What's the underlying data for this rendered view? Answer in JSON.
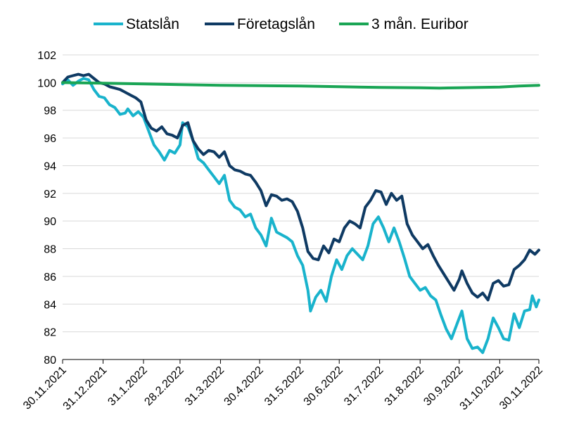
{
  "chart_data": {
    "type": "line",
    "title": "",
    "xlabel": "",
    "ylabel": "",
    "ylim": [
      80,
      102
    ],
    "yticks": [
      80,
      82,
      84,
      86,
      88,
      90,
      92,
      94,
      96,
      98,
      100,
      102
    ],
    "grid": "horizontal",
    "legend": "top",
    "xticks": [
      {
        "label": "30.11.2021",
        "date": "2021-11-30"
      },
      {
        "label": "31.12.2021",
        "date": "2021-12-31"
      },
      {
        "label": "31.1.2022",
        "date": "2022-01-31"
      },
      {
        "label": "28.2.2022",
        "date": "2022-02-28"
      },
      {
        "label": "31.3.2022",
        "date": "2022-03-31"
      },
      {
        "label": "30.4.2022",
        "date": "2022-04-30"
      },
      {
        "label": "31.5.2022",
        "date": "2022-05-31"
      },
      {
        "label": "30.6.2022",
        "date": "2022-06-30"
      },
      {
        "label": "31.7.2022",
        "date": "2022-07-31"
      },
      {
        "label": "31.8.2022",
        "date": "2022-08-31"
      },
      {
        "label": "30.9.2022",
        "date": "2022-09-30"
      },
      {
        "label": "31.10.2022",
        "date": "2022-10-31"
      },
      {
        "label": "30.11.2022",
        "date": "2022-11-30"
      }
    ],
    "series": [
      {
        "name": "Statslån",
        "color": "#19b3cc",
        "points": [
          [
            "2021-11-30",
            99.9
          ],
          [
            "2021-12-04",
            100.2
          ],
          [
            "2021-12-08",
            99.8
          ],
          [
            "2021-12-12",
            100.1
          ],
          [
            "2021-12-16",
            100.3
          ],
          [
            "2021-12-20",
            100.2
          ],
          [
            "2021-12-24",
            99.5
          ],
          [
            "2021-12-28",
            99.0
          ],
          [
            "2022-01-01",
            98.9
          ],
          [
            "2022-01-05",
            98.4
          ],
          [
            "2022-01-09",
            98.2
          ],
          [
            "2022-01-13",
            97.7
          ],
          [
            "2022-01-17",
            97.8
          ],
          [
            "2022-01-19",
            98.1
          ],
          [
            "2022-01-23",
            97.6
          ],
          [
            "2022-01-27",
            97.9
          ],
          [
            "2022-01-31",
            97.5
          ],
          [
            "2022-02-04",
            96.5
          ],
          [
            "2022-02-08",
            95.5
          ],
          [
            "2022-02-12",
            95.0
          ],
          [
            "2022-02-16",
            94.4
          ],
          [
            "2022-02-20",
            95.1
          ],
          [
            "2022-02-24",
            94.9
          ],
          [
            "2022-02-28",
            95.5
          ],
          [
            "2022-03-02",
            97.1
          ],
          [
            "2022-03-06",
            96.8
          ],
          [
            "2022-03-10",
            95.8
          ],
          [
            "2022-03-14",
            94.5
          ],
          [
            "2022-03-18",
            94.2
          ],
          [
            "2022-03-22",
            93.7
          ],
          [
            "2022-03-26",
            93.2
          ],
          [
            "2022-03-30",
            92.7
          ],
          [
            "2022-04-03",
            93.3
          ],
          [
            "2022-04-07",
            91.5
          ],
          [
            "2022-04-11",
            91.0
          ],
          [
            "2022-04-15",
            90.8
          ],
          [
            "2022-04-19",
            90.3
          ],
          [
            "2022-04-23",
            90.5
          ],
          [
            "2022-04-27",
            89.5
          ],
          [
            "2022-05-01",
            89.0
          ],
          [
            "2022-05-05",
            88.2
          ],
          [
            "2022-05-09",
            90.2
          ],
          [
            "2022-05-13",
            89.2
          ],
          [
            "2022-05-17",
            89.0
          ],
          [
            "2022-05-21",
            88.8
          ],
          [
            "2022-05-25",
            88.5
          ],
          [
            "2022-05-29",
            87.5
          ],
          [
            "2022-06-02",
            86.8
          ],
          [
            "2022-06-06",
            85.0
          ],
          [
            "2022-06-08",
            83.5
          ],
          [
            "2022-06-12",
            84.5
          ],
          [
            "2022-06-16",
            85.0
          ],
          [
            "2022-06-20",
            84.2
          ],
          [
            "2022-06-24",
            86.0
          ],
          [
            "2022-06-28",
            87.2
          ],
          [
            "2022-07-02",
            86.5
          ],
          [
            "2022-07-06",
            87.5
          ],
          [
            "2022-07-10",
            88.0
          ],
          [
            "2022-07-14",
            87.6
          ],
          [
            "2022-07-18",
            87.2
          ],
          [
            "2022-07-22",
            88.2
          ],
          [
            "2022-07-26",
            89.8
          ],
          [
            "2022-07-30",
            90.3
          ],
          [
            "2022-08-03",
            89.5
          ],
          [
            "2022-08-07",
            88.5
          ],
          [
            "2022-08-11",
            89.5
          ],
          [
            "2022-08-15",
            88.5
          ],
          [
            "2022-08-19",
            87.3
          ],
          [
            "2022-08-23",
            86.0
          ],
          [
            "2022-08-27",
            85.5
          ],
          [
            "2022-08-31",
            85.0
          ],
          [
            "2022-09-04",
            85.2
          ],
          [
            "2022-09-08",
            84.6
          ],
          [
            "2022-09-12",
            84.3
          ],
          [
            "2022-09-16",
            83.2
          ],
          [
            "2022-09-20",
            82.2
          ],
          [
            "2022-09-24",
            81.5
          ],
          [
            "2022-09-28",
            82.5
          ],
          [
            "2022-10-02",
            83.5
          ],
          [
            "2022-10-06",
            81.5
          ],
          [
            "2022-10-10",
            80.8
          ],
          [
            "2022-10-14",
            80.9
          ],
          [
            "2022-10-18",
            80.5
          ],
          [
            "2022-10-22",
            81.5
          ],
          [
            "2022-10-26",
            83.0
          ],
          [
            "2022-10-30",
            82.3
          ],
          [
            "2022-11-03",
            81.5
          ],
          [
            "2022-11-07",
            81.4
          ],
          [
            "2022-11-11",
            83.3
          ],
          [
            "2022-11-15",
            82.3
          ],
          [
            "2022-11-19",
            83.5
          ],
          [
            "2022-11-23",
            83.6
          ],
          [
            "2022-11-25",
            84.6
          ],
          [
            "2022-11-28",
            83.8
          ],
          [
            "2022-11-30",
            84.3
          ]
        ]
      },
      {
        "name": "Företagslån",
        "color": "#0f3a63",
        "points": [
          [
            "2021-11-30",
            100.0
          ],
          [
            "2021-12-04",
            100.4
          ],
          [
            "2021-12-08",
            100.5
          ],
          [
            "2021-12-12",
            100.6
          ],
          [
            "2021-12-16",
            100.5
          ],
          [
            "2021-12-20",
            100.6
          ],
          [
            "2021-12-24",
            100.3
          ],
          [
            "2021-12-28",
            100.0
          ],
          [
            "2022-01-01",
            99.9
          ],
          [
            "2022-01-05",
            99.7
          ],
          [
            "2022-01-09",
            99.6
          ],
          [
            "2022-01-13",
            99.5
          ],
          [
            "2022-01-17",
            99.3
          ],
          [
            "2022-01-21",
            99.1
          ],
          [
            "2022-01-25",
            98.9
          ],
          [
            "2022-01-29",
            98.6
          ],
          [
            "2022-02-02",
            97.3
          ],
          [
            "2022-02-06",
            96.7
          ],
          [
            "2022-02-10",
            96.5
          ],
          [
            "2022-02-14",
            96.8
          ],
          [
            "2022-02-18",
            96.3
          ],
          [
            "2022-02-22",
            96.2
          ],
          [
            "2022-02-26",
            96.0
          ],
          [
            "2022-03-02",
            96.9
          ],
          [
            "2022-03-06",
            97.1
          ],
          [
            "2022-03-10",
            95.8
          ],
          [
            "2022-03-14",
            95.2
          ],
          [
            "2022-03-18",
            94.8
          ],
          [
            "2022-03-22",
            95.1
          ],
          [
            "2022-03-26",
            95.0
          ],
          [
            "2022-03-30",
            94.6
          ],
          [
            "2022-04-03",
            95.0
          ],
          [
            "2022-04-07",
            94.0
          ],
          [
            "2022-04-11",
            93.7
          ],
          [
            "2022-04-15",
            93.6
          ],
          [
            "2022-04-19",
            93.4
          ],
          [
            "2022-04-23",
            93.3
          ],
          [
            "2022-04-27",
            92.8
          ],
          [
            "2022-05-01",
            92.2
          ],
          [
            "2022-05-05",
            91.1
          ],
          [
            "2022-05-09",
            91.9
          ],
          [
            "2022-05-13",
            91.8
          ],
          [
            "2022-05-17",
            91.5
          ],
          [
            "2022-05-21",
            91.6
          ],
          [
            "2022-05-25",
            91.4
          ],
          [
            "2022-05-29",
            90.7
          ],
          [
            "2022-06-02",
            89.5
          ],
          [
            "2022-06-06",
            87.8
          ],
          [
            "2022-06-10",
            87.3
          ],
          [
            "2022-06-14",
            87.2
          ],
          [
            "2022-06-18",
            88.2
          ],
          [
            "2022-06-22",
            87.7
          ],
          [
            "2022-06-26",
            88.7
          ],
          [
            "2022-06-30",
            88.5
          ],
          [
            "2022-07-04",
            89.5
          ],
          [
            "2022-07-08",
            90.0
          ],
          [
            "2022-07-12",
            89.8
          ],
          [
            "2022-07-16",
            89.5
          ],
          [
            "2022-07-20",
            91.0
          ],
          [
            "2022-07-24",
            91.5
          ],
          [
            "2022-07-28",
            92.2
          ],
          [
            "2022-08-01",
            92.1
          ],
          [
            "2022-08-05",
            91.2
          ],
          [
            "2022-08-09",
            92.0
          ],
          [
            "2022-08-13",
            91.5
          ],
          [
            "2022-08-17",
            91.8
          ],
          [
            "2022-08-21",
            89.8
          ],
          [
            "2022-08-25",
            89.0
          ],
          [
            "2022-08-29",
            88.5
          ],
          [
            "2022-09-02",
            88.0
          ],
          [
            "2022-09-06",
            88.3
          ],
          [
            "2022-09-10",
            87.5
          ],
          [
            "2022-09-14",
            86.8
          ],
          [
            "2022-09-18",
            86.2
          ],
          [
            "2022-09-22",
            85.6
          ],
          [
            "2022-09-26",
            85.0
          ],
          [
            "2022-09-30",
            85.8
          ],
          [
            "2022-10-02",
            86.4
          ],
          [
            "2022-10-06",
            85.5
          ],
          [
            "2022-10-10",
            84.8
          ],
          [
            "2022-10-14",
            84.5
          ],
          [
            "2022-10-18",
            84.8
          ],
          [
            "2022-10-22",
            84.3
          ],
          [
            "2022-10-26",
            85.5
          ],
          [
            "2022-10-30",
            85.7
          ],
          [
            "2022-11-03",
            85.3
          ],
          [
            "2022-11-07",
            85.4
          ],
          [
            "2022-11-11",
            86.5
          ],
          [
            "2022-11-15",
            86.8
          ],
          [
            "2022-11-19",
            87.2
          ],
          [
            "2022-11-23",
            87.9
          ],
          [
            "2022-11-27",
            87.6
          ],
          [
            "2022-11-30",
            87.9
          ]
        ]
      },
      {
        "name": "3 mån. Euribor",
        "color": "#1aa555",
        "points": [
          [
            "2021-11-30",
            100.0
          ],
          [
            "2021-12-31",
            99.95
          ],
          [
            "2022-01-31",
            99.9
          ],
          [
            "2022-02-28",
            99.85
          ],
          [
            "2022-03-31",
            99.8
          ],
          [
            "2022-04-30",
            99.78
          ],
          [
            "2022-05-31",
            99.75
          ],
          [
            "2022-06-30",
            99.7
          ],
          [
            "2022-07-31",
            99.65
          ],
          [
            "2022-08-31",
            99.62
          ],
          [
            "2022-09-15",
            99.6
          ],
          [
            "2022-09-30",
            99.62
          ],
          [
            "2022-10-31",
            99.68
          ],
          [
            "2022-11-15",
            99.75
          ],
          [
            "2022-11-30",
            99.8
          ]
        ]
      }
    ]
  }
}
